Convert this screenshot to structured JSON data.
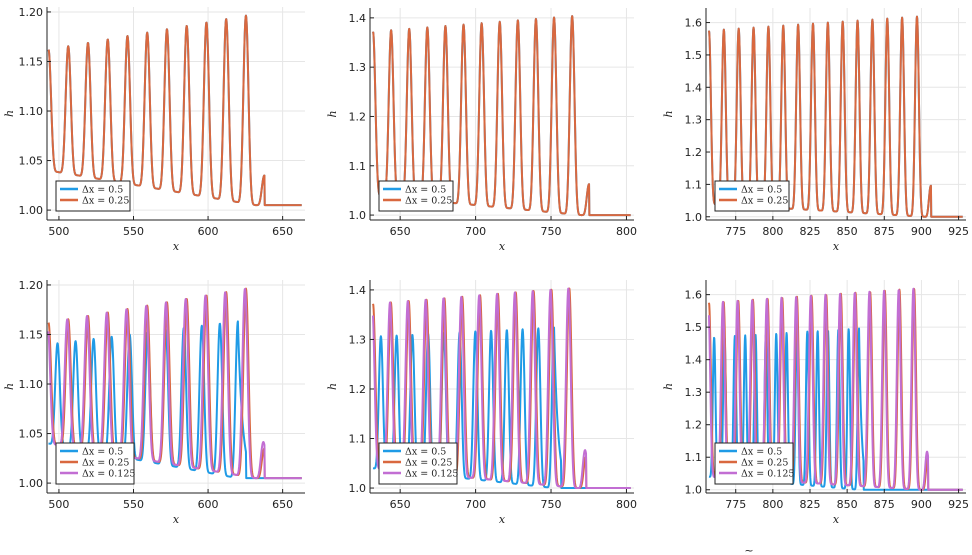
{
  "figure": {
    "footer_mark": "~"
  },
  "chart_data": [
    {
      "type": "line",
      "xlabel": "x",
      "ylabel": "h",
      "xlim": [
        492,
        665
      ],
      "ylim": [
        0.99,
        1.205
      ],
      "xticks": [
        500,
        550,
        600,
        650
      ],
      "yticks": [
        1.0,
        1.05,
        1.1,
        1.15,
        1.2
      ],
      "ytick_labels": [
        "1.00",
        "1.05",
        "1.10",
        "1.15",
        "1.20"
      ],
      "legend_position": "bottom-left",
      "wave": {
        "x_start": 493,
        "front": 632,
        "n_peaks": 11,
        "first_peak": 1.162,
        "last_peak": 1.198,
        "first_min": 1.04,
        "last_min": 1.005
      },
      "series": [
        {
          "name": "Δx = 0.5",
          "color": "#1f9be6",
          "scale": 1.0,
          "phase": 0
        },
        {
          "name": "Δx = 0.25",
          "color": "#d9683f",
          "scale": 1.0,
          "phase": 0
        }
      ]
    },
    {
      "type": "line",
      "xlabel": "x",
      "ylabel": "h",
      "xlim": [
        630,
        805
      ],
      "ylim": [
        0.99,
        1.42
      ],
      "xticks": [
        650,
        700,
        750,
        800
      ],
      "yticks": [
        1.0,
        1.1,
        1.2,
        1.3,
        1.4
      ],
      "ytick_labels": [
        "1.0",
        "1.1",
        "1.2",
        "1.3",
        "1.4"
      ],
      "legend_position": "bottom-left",
      "wave": {
        "x_start": 632,
        "front": 770,
        "n_peaks": 12,
        "first_peak": 1.372,
        "last_peak": 1.405,
        "first_min": 1.04,
        "last_min": 1.0
      },
      "series": [
        {
          "name": "Δx = 0.5",
          "color": "#1f9be6",
          "scale": 1.0,
          "phase": 0
        },
        {
          "name": "Δx = 0.25",
          "color": "#d9683f",
          "scale": 1.0,
          "phase": 0
        }
      ]
    },
    {
      "type": "line",
      "xlabel": "x",
      "ylabel": "h",
      "xlim": [
        755,
        930
      ],
      "ylim": [
        0.99,
        1.645
      ],
      "xticks": [
        775,
        800,
        825,
        850,
        875,
        900,
        925
      ],
      "yticks": [
        1.0,
        1.1,
        1.2,
        1.3,
        1.4,
        1.5,
        1.6
      ],
      "ytick_labels": [
        "1.0",
        "1.1",
        "1.2",
        "1.3",
        "1.4",
        "1.5",
        "1.6"
      ],
      "legend_position": "bottom-left",
      "wave": {
        "x_start": 757,
        "front": 902,
        "n_peaks": 15,
        "first_peak": 1.575,
        "last_peak": 1.62,
        "first_min": 1.04,
        "last_min": 1.0
      },
      "series": [
        {
          "name": "Δx = 0.5",
          "color": "#1f9be6",
          "scale": 1.0,
          "phase": 0
        },
        {
          "name": "Δx = 0.25",
          "color": "#d9683f",
          "scale": 1.0,
          "phase": 0
        }
      ]
    },
    {
      "type": "line",
      "xlabel": "x",
      "ylabel": "h",
      "xlim": [
        492,
        665
      ],
      "ylim": [
        0.99,
        1.205
      ],
      "xticks": [
        500,
        550,
        600,
        650
      ],
      "yticks": [
        1.0,
        1.05,
        1.1,
        1.15,
        1.2
      ],
      "ytick_labels": [
        "1.00",
        "1.05",
        "1.10",
        "1.15",
        "1.20"
      ],
      "legend_position": "bottom-left",
      "wave": {
        "x_start": 493,
        "front": 632,
        "n_peaks": 11,
        "first_peak": 1.162,
        "last_peak": 1.198,
        "first_min": 1.04,
        "last_min": 1.005
      },
      "series": [
        {
          "name": "Δx = 0.5",
          "color": "#1f9be6",
          "scale": 0.82,
          "phase": 0.5,
          "front": 620
        },
        {
          "name": "Δx = 0.25",
          "color": "#d9683f",
          "scale": 1.0,
          "phase": 0
        },
        {
          "name": "Δx = 0.125",
          "color": "#c26ed3",
          "scale": 1.0,
          "phase": 0.05
        }
      ]
    },
    {
      "type": "line",
      "xlabel": "x",
      "ylabel": "h",
      "xlim": [
        630,
        805
      ],
      "ylim": [
        0.99,
        1.42
      ],
      "xticks": [
        650,
        700,
        750,
        800
      ],
      "yticks": [
        1.0,
        1.1,
        1.2,
        1.3,
        1.4
      ],
      "ytick_labels": [
        "1.0",
        "1.1",
        "1.2",
        "1.3",
        "1.4"
      ],
      "legend_position": "bottom-left",
      "wave": {
        "x_start": 632,
        "front": 768,
        "n_peaks": 12,
        "first_peak": 1.372,
        "last_peak": 1.405,
        "first_min": 1.04,
        "last_min": 1.0
      },
      "series": [
        {
          "name": "Δx = 0.5",
          "color": "#1f9be6",
          "scale": 0.8,
          "phase": 0.5,
          "front": 752
        },
        {
          "name": "Δx = 0.25",
          "color": "#d9683f",
          "scale": 1.0,
          "phase": 0
        },
        {
          "name": "Δx = 0.125",
          "color": "#c26ed3",
          "scale": 1.0,
          "phase": 0.05
        }
      ]
    },
    {
      "type": "line",
      "xlabel": "x",
      "ylabel": "h",
      "xlim": [
        755,
        930
      ],
      "ylim": [
        0.99,
        1.645
      ],
      "xticks": [
        775,
        800,
        825,
        850,
        875,
        900,
        925
      ],
      "yticks": [
        1.0,
        1.1,
        1.2,
        1.3,
        1.4,
        1.5,
        1.6
      ],
      "ytick_labels": [
        "1.0",
        "1.1",
        "1.2",
        "1.3",
        "1.4",
        "1.5",
        "1.6"
      ],
      "legend_position": "bottom-left",
      "wave": {
        "x_start": 757,
        "front": 900,
        "n_peaks": 15,
        "first_peak": 1.575,
        "last_peak": 1.62,
        "first_min": 1.04,
        "last_min": 1.0
      },
      "series": [
        {
          "name": "Δx = 0.5",
          "color": "#1f9be6",
          "scale": 0.8,
          "phase": 0.5,
          "front": 858
        },
        {
          "name": "Δx = 0.25",
          "color": "#d9683f",
          "scale": 1.0,
          "phase": 0
        },
        {
          "name": "Δx = 0.125",
          "color": "#c26ed3",
          "scale": 1.0,
          "phase": 0.05
        }
      ]
    }
  ]
}
